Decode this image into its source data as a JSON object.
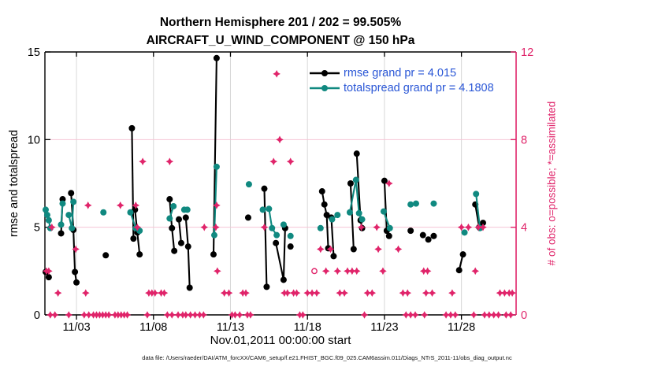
{
  "chart_data": {
    "type": "line",
    "title": "Northern Hemisphere 201 / 202 = 99.505%",
    "subtitle": "AIRCRAFT_U_WIND_COMPONENT @ 150 hPa",
    "xlabel": "Nov.01,2011 00:00:00 start",
    "ylabel_left": "rmse and totalspread",
    "ylabel_right": "# of obs: o=possible; *=assimilated",
    "caption": "data file: /Users/raeder/DAI/ATM_forcXX/CAM6_setup/f.e21.FHIST_BGC.f09_025.CAM6assim.011/Diags_NTrS_2011-11/obs_diag_output.nc",
    "legend": [
      {
        "series": "rmse",
        "label": "rmse grand pr = 4.015"
      },
      {
        "series": "totalspread",
        "label": "totalspread grand pr = 4.1808"
      }
    ],
    "colors": {
      "rmse": "#000000",
      "totalspread": "#108980",
      "obs": "#e0246a",
      "legend_text": "#2956d6",
      "grid_vertical": "#d8d8d8",
      "grid_horizontal": "#f6c5d4"
    },
    "x_range": [
      0.95,
      31.55
    ],
    "ylim_left": [
      0,
      15
    ],
    "ylim_right": [
      0,
      12
    ],
    "x_ticks": [
      {
        "day": 3,
        "label": "11/03"
      },
      {
        "day": 8,
        "label": "11/08"
      },
      {
        "day": 13,
        "label": "11/13"
      },
      {
        "day": 18,
        "label": "11/18"
      },
      {
        "day": 23,
        "label": "11/23"
      },
      {
        "day": 28,
        "label": "11/28"
      }
    ],
    "y_ticks_left": [
      0,
      5,
      10,
      15
    ],
    "y_ticks_right": [
      0,
      4,
      8,
      12
    ],
    "grid_right_values": [
      4,
      8
    ],
    "rmse_segments": [
      [
        [
          1.0,
          2.45
        ],
        [
          1.2,
          2.15
        ]
      ],
      [
        [
          2.0,
          4.65
        ],
        [
          2.1,
          6.6
        ]
      ],
      [
        [
          2.65,
          6.95
        ],
        [
          2.8,
          4.85
        ],
        [
          2.9,
          2.45
        ],
        [
          3.0,
          1.85
        ]
      ],
      [
        [
          4.9,
          3.4
        ]
      ],
      [
        [
          6.6,
          10.65
        ],
        [
          6.7,
          4.35
        ]
      ],
      [
        [
          6.8,
          6.0
        ],
        [
          6.95,
          4.7
        ],
        [
          7.1,
          3.45
        ]
      ],
      [
        [
          9.05,
          6.6
        ],
        [
          9.2,
          4.95
        ],
        [
          9.35,
          3.65
        ]
      ],
      [
        [
          9.65,
          5.45
        ],
        [
          9.8,
          4.1
        ]
      ],
      [
        [
          10.1,
          5.55
        ],
        [
          10.25,
          3.9
        ],
        [
          10.35,
          1.55
        ]
      ],
      [
        [
          11.9,
          3.45
        ],
        [
          12.1,
          14.65
        ]
      ],
      [
        [
          14.15,
          5.55
        ]
      ],
      [
        [
          15.2,
          7.2
        ],
        [
          15.35,
          1.6
        ]
      ],
      [
        [
          15.95,
          4.1
        ],
        [
          16.45,
          2.0
        ],
        [
          16.55,
          4.95
        ]
      ],
      [
        [
          16.9,
          3.9
        ]
      ],
      [
        [
          18.95,
          7.05
        ],
        [
          19.1,
          6.3
        ],
        [
          19.25,
          5.7
        ],
        [
          19.35,
          3.8
        ]
      ],
      [
        [
          19.55,
          5.55
        ],
        [
          19.7,
          3.35
        ]
      ],
      [
        [
          20.8,
          7.5
        ],
        [
          21.0,
          3.75
        ]
      ],
      [
        [
          21.2,
          9.2
        ],
        [
          21.45,
          5.4
        ],
        [
          21.55,
          4.95
        ]
      ],
      [
        [
          23.0,
          7.65
        ],
        [
          23.15,
          4.8
        ],
        [
          23.3,
          4.5
        ]
      ],
      [
        [
          24.7,
          4.8
        ]
      ],
      [
        [
          25.5,
          4.55
        ]
      ],
      [
        [
          25.85,
          4.3
        ]
      ],
      [
        [
          26.2,
          4.5
        ]
      ],
      [
        [
          27.85,
          2.55
        ],
        [
          28.1,
          3.45
        ]
      ],
      [
        [
          28.9,
          6.3
        ],
        [
          29.15,
          5.0
        ],
        [
          29.4,
          5.25
        ]
      ]
    ],
    "totalspread_segments": [
      [
        [
          1.0,
          6.0
        ],
        [
          1.1,
          5.7
        ],
        [
          1.2,
          5.4
        ],
        [
          1.3,
          4.95
        ]
      ],
      [
        [
          2.0,
          5.15
        ],
        [
          2.1,
          6.35
        ]
      ],
      [
        [
          2.5,
          5.7
        ],
        [
          2.7,
          4.95
        ],
        [
          2.8,
          6.45
        ]
      ],
      [
        [
          4.75,
          5.85
        ]
      ],
      [
        [
          6.5,
          5.85
        ],
        [
          6.85,
          4.95
        ],
        [
          7.1,
          4.8
        ]
      ],
      [
        [
          9.05,
          5.5
        ],
        [
          9.3,
          6.2
        ]
      ],
      [
        [
          10.0,
          6.0
        ],
        [
          10.2,
          6.0
        ]
      ],
      [
        [
          11.95,
          4.55
        ],
        [
          12.1,
          8.45
        ]
      ],
      [
        [
          14.2,
          7.45
        ]
      ],
      [
        [
          15.1,
          6.0
        ],
        [
          15.5,
          6.05
        ],
        [
          15.7,
          4.95
        ],
        [
          16.0,
          4.55
        ]
      ],
      [
        [
          16.45,
          5.15
        ]
      ],
      [
        [
          16.9,
          4.5
        ]
      ],
      [
        [
          18.85,
          4.95
        ]
      ],
      [
        [
          19.6,
          5.45
        ],
        [
          19.95,
          5.7
        ]
      ],
      [
        [
          20.75,
          5.85
        ],
        [
          21.15,
          7.7
        ],
        [
          21.35,
          5.8
        ],
        [
          21.55,
          5.45
        ]
      ],
      [
        [
          22.95,
          5.9
        ],
        [
          23.35,
          4.95
        ]
      ],
      [
        [
          24.7,
          6.3
        ],
        [
          25.05,
          6.35
        ]
      ],
      [
        [
          26.2,
          6.35
        ]
      ],
      [
        [
          28.2,
          4.7
        ]
      ],
      [
        [
          28.95,
          6.9
        ],
        [
          29.2,
          4.95
        ]
      ]
    ],
    "obs_assimilated": [
      [
        16.0,
        11
      ],
      [
        16.2,
        8
      ],
      [
        7.3,
        7
      ],
      [
        9.05,
        7
      ],
      [
        15.8,
        7
      ],
      [
        16.9,
        7
      ],
      [
        23.3,
        6
      ],
      [
        3.75,
        5
      ],
      [
        5.85,
        5
      ],
      [
        6.85,
        5
      ],
      [
        12.1,
        5
      ],
      [
        1.4,
        4
      ],
      [
        6.95,
        4
      ],
      [
        11.3,
        4
      ],
      [
        12.05,
        4
      ],
      [
        15.2,
        4
      ],
      [
        21.5,
        4
      ],
      [
        22.5,
        4
      ],
      [
        28.0,
        4
      ],
      [
        28.45,
        4
      ],
      [
        29.1,
        4
      ],
      [
        29.4,
        4
      ],
      [
        2.95,
        3
      ],
      [
        18.85,
        3
      ],
      [
        19.5,
        3
      ],
      [
        22.6,
        3
      ],
      [
        23.9,
        3
      ],
      [
        1.05,
        2
      ],
      [
        1.2,
        2
      ],
      [
        12.15,
        2
      ],
      [
        19.2,
        2
      ],
      [
        19.95,
        2
      ],
      [
        20.6,
        2
      ],
      [
        20.9,
        2
      ],
      [
        21.2,
        2
      ],
      [
        22.9,
        2
      ],
      [
        25.55,
        2
      ],
      [
        25.8,
        2
      ],
      [
        28.9,
        2
      ],
      [
        1.8,
        1
      ],
      [
        3.6,
        1
      ],
      [
        7.7,
        1
      ],
      [
        7.9,
        1
      ],
      [
        8.1,
        1
      ],
      [
        8.5,
        1
      ],
      [
        8.7,
        1
      ],
      [
        12.6,
        1
      ],
      [
        12.9,
        1
      ],
      [
        13.8,
        1
      ],
      [
        14.0,
        1
      ],
      [
        16.5,
        1
      ],
      [
        16.7,
        1
      ],
      [
        17.1,
        1
      ],
      [
        17.3,
        1
      ],
      [
        18.0,
        1
      ],
      [
        18.3,
        1
      ],
      [
        18.6,
        1
      ],
      [
        20.1,
        1
      ],
      [
        20.4,
        1
      ],
      [
        21.9,
        1
      ],
      [
        22.2,
        1
      ],
      [
        24.2,
        1
      ],
      [
        24.5,
        1
      ],
      [
        25.7,
        1
      ],
      [
        26.1,
        1
      ],
      [
        27.4,
        1
      ],
      [
        30.5,
        1
      ],
      [
        30.8,
        1
      ],
      [
        31.1,
        1
      ],
      [
        31.3,
        1
      ],
      [
        1.3,
        0
      ],
      [
        1.6,
        0
      ],
      [
        2.5,
        0
      ],
      [
        3.5,
        0
      ],
      [
        3.8,
        0
      ],
      [
        4.1,
        0
      ],
      [
        4.3,
        0
      ],
      [
        4.5,
        0
      ],
      [
        4.7,
        0
      ],
      [
        4.9,
        0
      ],
      [
        5.1,
        0
      ],
      [
        5.5,
        0
      ],
      [
        5.7,
        0
      ],
      [
        5.9,
        0
      ],
      [
        6.1,
        0
      ],
      [
        6.3,
        0
      ],
      [
        7.6,
        0
      ],
      [
        8.9,
        0
      ],
      [
        9.2,
        0
      ],
      [
        9.6,
        0
      ],
      [
        9.9,
        0
      ],
      [
        10.1,
        0
      ],
      [
        10.4,
        0
      ],
      [
        10.7,
        0
      ],
      [
        11.0,
        0
      ],
      [
        11.25,
        0
      ],
      [
        13.1,
        0
      ],
      [
        13.3,
        0
      ],
      [
        13.6,
        0
      ],
      [
        14.1,
        0
      ],
      [
        14.3,
        0
      ],
      [
        17.5,
        0
      ],
      [
        17.7,
        0
      ],
      [
        21.7,
        0
      ],
      [
        24.4,
        0
      ],
      [
        24.7,
        0
      ],
      [
        25.0,
        0
      ],
      [
        25.6,
        0
      ],
      [
        27.0,
        0
      ],
      [
        27.3,
        0
      ],
      [
        27.6,
        0
      ],
      [
        28.8,
        0
      ],
      [
        29.5,
        0
      ],
      [
        29.8,
        0
      ],
      [
        30.1,
        0
      ],
      [
        30.4,
        0
      ],
      [
        30.9,
        0
      ],
      [
        31.2,
        0
      ]
    ],
    "obs_possible": [
      [
        18.45,
        2
      ]
    ]
  }
}
